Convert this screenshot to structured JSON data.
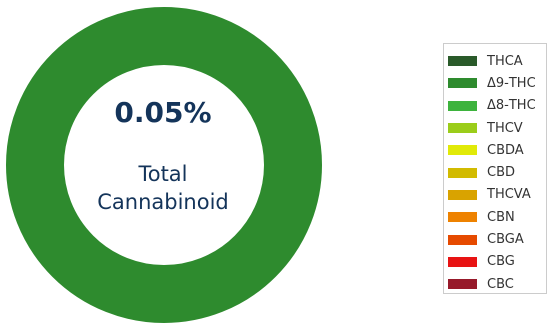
{
  "chart_data": {
    "type": "pie",
    "center_value": "0.05%",
    "center_label_lines": [
      "Total",
      "Cannabinoid"
    ],
    "slices": [
      {
        "label": "Δ9-THC",
        "value": 100,
        "color": "#2e8b2e"
      }
    ],
    "legend": [
      {
        "label": "THCA",
        "color": "#2a5a2a"
      },
      {
        "label": "Δ9-THC",
        "color": "#2e8b2e"
      },
      {
        "label": "Δ8-THC",
        "color": "#3db33d"
      },
      {
        "label": "THCV",
        "color": "#9bcd1a"
      },
      {
        "label": "CBDA",
        "color": "#e1ea08"
      },
      {
        "label": "CBD",
        "color": "#d2bb00"
      },
      {
        "label": "THCVA",
        "color": "#d9a300"
      },
      {
        "label": "CBN",
        "color": "#ee8200"
      },
      {
        "label": "CBGA",
        "color": "#e64a00"
      },
      {
        "label": "CBG",
        "color": "#e81313"
      },
      {
        "label": "CBC",
        "color": "#97192a"
      }
    ],
    "legend_position": "right"
  }
}
